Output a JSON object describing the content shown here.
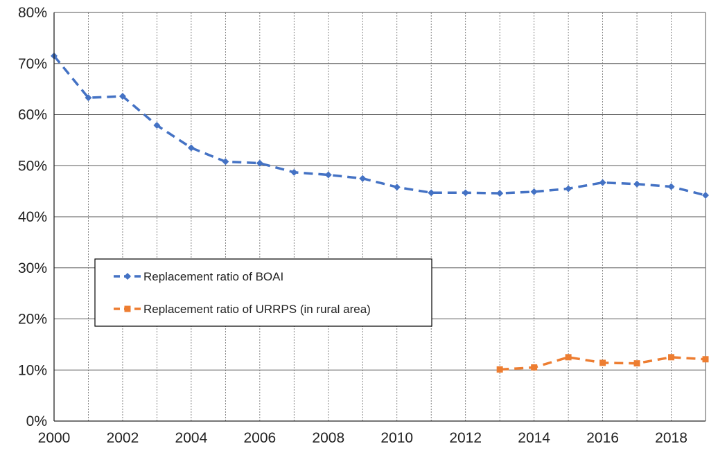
{
  "chart_data": {
    "type": "line",
    "title": "",
    "xlabel": "",
    "ylabel": "",
    "x": [
      2000,
      2001,
      2002,
      2003,
      2004,
      2005,
      2006,
      2007,
      2008,
      2009,
      2010,
      2011,
      2012,
      2013,
      2014,
      2015,
      2016,
      2017,
      2018,
      2019
    ],
    "xlim": [
      2000,
      2019
    ],
    "ylim": [
      0,
      80
    ],
    "x_ticks": [
      2000,
      2002,
      2004,
      2006,
      2008,
      2010,
      2012,
      2014,
      2016,
      2018
    ],
    "x_tick_labels": [
      "2000",
      "2002",
      "2004",
      "2006",
      "2008",
      "2010",
      "2012",
      "2014",
      "2016",
      "2018"
    ],
    "y_ticks": [
      0,
      10,
      20,
      30,
      40,
      50,
      60,
      70,
      80
    ],
    "y_tick_labels": [
      "0%",
      "10%",
      "20%",
      "30%",
      "40%",
      "50%",
      "60%",
      "70%",
      "80%"
    ],
    "grid": true,
    "legend_position": "center-left",
    "series": [
      {
        "name": "Replacement ratio of BOAI",
        "color": "#4472C4",
        "marker": "diamond",
        "line_style": "dashed",
        "x": [
          2000,
          2001,
          2002,
          2003,
          2004,
          2005,
          2006,
          2007,
          2008,
          2009,
          2010,
          2011,
          2012,
          2013,
          2014,
          2015,
          2016,
          2017,
          2018,
          2019
        ],
        "values": [
          71.5,
          63.3,
          63.6,
          57.9,
          53.5,
          50.8,
          50.5,
          48.7,
          48.2,
          47.5,
          45.8,
          44.7,
          44.7,
          44.6,
          44.9,
          45.5,
          46.7,
          46.4,
          45.9,
          44.2
        ]
      },
      {
        "name": "Replacement ratio of URRPS (in rural area)",
        "color": "#ED7D31",
        "marker": "square",
        "line_style": "dashed",
        "x": [
          2013,
          2014,
          2015,
          2016,
          2017,
          2018,
          2019
        ],
        "values": [
          10.1,
          10.5,
          12.5,
          11.4,
          11.3,
          12.5,
          12.1
        ]
      }
    ]
  }
}
